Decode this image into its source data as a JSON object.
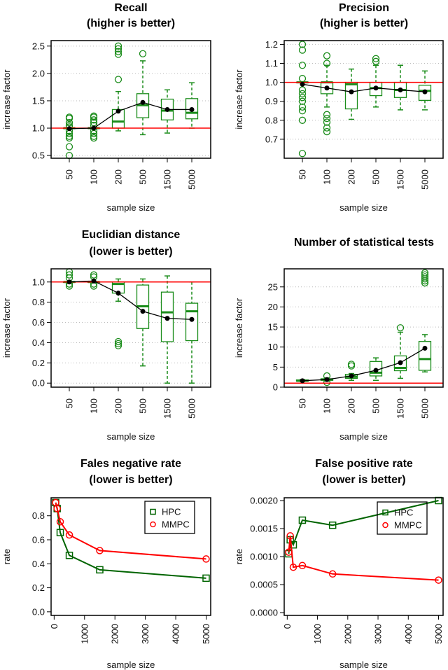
{
  "colors": {
    "box": "#1a8c1a",
    "hpc": "#006400",
    "mmpc": "#ff0000",
    "reference": "#ff0000",
    "mean": "#000000"
  },
  "chart_data": [
    {
      "type": "box",
      "title": [
        "Recall",
        "(higher is better)"
      ],
      "xlabel": "sample size",
      "ylabel": "increase factor",
      "categories": [
        "50",
        "100",
        "200",
        "500",
        "1500",
        "5000"
      ],
      "ylim": [
        0.45,
        2.6
      ],
      "yticks": [
        "0.5",
        "1.0",
        "1.5",
        "2.0",
        "2.5"
      ],
      "reference_line": 1.0,
      "boxes": [
        {
          "lo": 1.0,
          "q1": 1.0,
          "med": 1.0,
          "q3": 1.0,
          "hi": 1.0,
          "mean": 0.99,
          "outliers": [
            1.2,
            1.18,
            1.1,
            1.05,
            1.02,
            0.95,
            0.9,
            0.85,
            0.82,
            0.66,
            0.5
          ]
        },
        {
          "lo": 1.0,
          "q1": 1.0,
          "med": 1.0,
          "q3": 1.0,
          "hi": 1.0,
          "mean": 1.0,
          "outliers": [
            1.22,
            1.2,
            1.15,
            1.1,
            1.05,
            0.95,
            0.9,
            0.85,
            0.82
          ]
        },
        {
          "lo": 0.95,
          "q1": 1.0,
          "med": 1.12,
          "q3": 1.34,
          "hi": 1.67,
          "mean": 1.31,
          "outliers": [
            2.5,
            2.45,
            2.4,
            2.35,
            1.89
          ]
        },
        {
          "lo": 0.88,
          "q1": 1.19,
          "med": 1.42,
          "q3": 1.63,
          "hi": 2.23,
          "mean": 1.47,
          "outliers": [
            2.36
          ]
        },
        {
          "lo": 0.91,
          "q1": 1.15,
          "med": 1.32,
          "q3": 1.53,
          "hi": 1.7,
          "mean": 1.34,
          "outliers": []
        },
        {
          "lo": 1.0,
          "q1": 1.17,
          "med": 1.28,
          "q3": 1.54,
          "hi": 1.83,
          "mean": 1.34,
          "outliers": []
        }
      ]
    },
    {
      "type": "box",
      "title": [
        "Precision",
        "(higher is better)"
      ],
      "xlabel": "sample size",
      "ylabel": "increase factor",
      "categories": [
        "50",
        "100",
        "200",
        "500",
        "1500",
        "5000"
      ],
      "ylim": [
        0.6,
        1.22
      ],
      "yticks": [
        "0.7",
        "0.8",
        "0.9",
        "1.0",
        "1.1",
        "1.2"
      ],
      "reference_line": 1.0,
      "boxes": [
        {
          "lo": 1.0,
          "q1": 1.0,
          "med": 1.0,
          "q3": 1.0,
          "hi": 1.0,
          "mean": 0.99,
          "outliers": [
            1.2,
            1.17,
            1.09,
            1.02,
            0.96,
            0.94,
            0.92,
            0.9,
            0.87,
            0.85,
            0.8,
            0.625
          ]
        },
        {
          "lo": 0.87,
          "q1": 0.94,
          "med": 1.0,
          "q3": 1.0,
          "hi": 1.09,
          "mean": 0.97,
          "outliers": [
            1.14,
            1.1,
            0.83,
            0.81,
            0.79,
            0.76,
            0.74
          ]
        },
        {
          "lo": 0.805,
          "q1": 0.86,
          "med": 0.99,
          "q3": 1.0,
          "hi": 1.07,
          "mean": 0.95,
          "outliers": []
        },
        {
          "lo": 0.87,
          "q1": 0.93,
          "med": 0.97,
          "q3": 1.0,
          "hi": 1.09,
          "mean": 0.97,
          "outliers": [
            1.125,
            1.11
          ]
        },
        {
          "lo": 0.855,
          "q1": 0.92,
          "med": 0.96,
          "q3": 1.0,
          "hi": 1.09,
          "mean": 0.96,
          "outliers": []
        },
        {
          "lo": 0.855,
          "q1": 0.905,
          "med": 0.955,
          "q3": 0.985,
          "hi": 1.06,
          "mean": 0.95,
          "outliers": []
        }
      ]
    },
    {
      "type": "box",
      "title": [
        "Euclidian distance",
        "(lower is better)"
      ],
      "xlabel": "sample size",
      "ylabel": "increase factor",
      "categories": [
        "50",
        "100",
        "200",
        "500",
        "1500",
        "5000"
      ],
      "ylim": [
        -0.04,
        1.13
      ],
      "yticks": [
        "0.0",
        "0.2",
        "0.4",
        "0.6",
        "0.8",
        "1.0"
      ],
      "reference_line": 1.0,
      "boxes": [
        {
          "lo": 1.0,
          "q1": 1.0,
          "med": 1.0,
          "q3": 1.0,
          "hi": 1.0,
          "mean": 1.0,
          "outliers": [
            1.1,
            1.07,
            1.04,
            0.98,
            0.96
          ]
        },
        {
          "lo": 1.0,
          "q1": 1.0,
          "med": 1.0,
          "q3": 1.0,
          "hi": 1.0,
          "mean": 1.01,
          "outliers": [
            1.07,
            1.05,
            0.98,
            0.96
          ]
        },
        {
          "lo": 0.81,
          "q1": 0.89,
          "med": 0.98,
          "q3": 1.0,
          "hi": 1.03,
          "mean": 0.89,
          "outliers": [
            0.41,
            0.39,
            0.37
          ]
        },
        {
          "lo": 0.17,
          "q1": 0.54,
          "med": 0.76,
          "q3": 0.97,
          "hi": 1.03,
          "mean": 0.71,
          "outliers": []
        },
        {
          "lo": 0.0,
          "q1": 0.41,
          "med": 0.7,
          "q3": 0.9,
          "hi": 1.06,
          "mean": 0.64,
          "outliers": []
        },
        {
          "lo": 0.0,
          "q1": 0.42,
          "med": 0.71,
          "q3": 0.79,
          "hi": 1.0,
          "mean": 0.63,
          "outliers": []
        }
      ]
    },
    {
      "type": "box",
      "title": [
        "Number of statistical tests"
      ],
      "xlabel": "sample size",
      "ylabel": "increase factor",
      "categories": [
        "50",
        "100",
        "200",
        "500",
        "1500",
        "5000"
      ],
      "ylim": [
        0,
        29.5
      ],
      "yticks": [
        "0",
        "5",
        "10",
        "15",
        "20",
        "25"
      ],
      "reference_line": 1.0,
      "boxes": [
        {
          "lo": 1.4,
          "q1": 1.5,
          "med": 1.6,
          "q3": 1.8,
          "hi": 1.9,
          "mean": 1.6,
          "outliers": []
        },
        {
          "lo": 1.5,
          "q1": 1.7,
          "med": 1.9,
          "q3": 2.1,
          "hi": 2.3,
          "mean": 1.9,
          "outliers": [
            2.8,
            1.2
          ]
        },
        {
          "lo": 1.7,
          "q1": 2.2,
          "med": 2.6,
          "q3": 3.2,
          "hi": 3.4,
          "mean": 2.8,
          "outliers": [
            5.7,
            5.3
          ]
        },
        {
          "lo": 1.7,
          "q1": 2.8,
          "med": 3.6,
          "q3": 6.4,
          "hi": 7.3,
          "mean": 4.2,
          "outliers": []
        },
        {
          "lo": 2.2,
          "q1": 4.1,
          "med": 4.8,
          "q3": 7.8,
          "hi": 13.7,
          "mean": 6.1,
          "outliers": [
            14.8
          ]
        },
        {
          "lo": 3.8,
          "q1": 4.2,
          "med": 7.0,
          "q3": 11.4,
          "hi": 13.1,
          "mean": 9.7,
          "outliers": [
            28.5,
            28,
            27.5,
            27,
            26.5,
            26
          ]
        }
      ]
    },
    {
      "type": "line",
      "title": [
        "Fales negative rate",
        "(lower is better)"
      ],
      "xlabel": "sample size",
      "ylabel": "rate",
      "x": [
        50,
        100,
        200,
        500,
        1500,
        5000
      ],
      "xlim": [
        -100,
        5150
      ],
      "ylim": [
        -0.03,
        0.95
      ],
      "xticks": [
        "0",
        "1000",
        "2000",
        "3000",
        "4000",
        "5000"
      ],
      "yticks": [
        "0.0",
        "0.2",
        "0.4",
        "0.6",
        "0.8"
      ],
      "legend": "top-right",
      "series": [
        {
          "name": "HPC",
          "marker": "square",
          "values": [
            0.91,
            0.86,
            0.66,
            0.47,
            0.35,
            0.28
          ]
        },
        {
          "name": "MMPC",
          "marker": "circle",
          "values": [
            0.91,
            0.86,
            0.75,
            0.64,
            0.51,
            0.44
          ]
        }
      ]
    },
    {
      "type": "line",
      "title": [
        "False positive rate",
        "(lower is better)"
      ],
      "xlabel": "sample size",
      "ylabel": "rate",
      "x": [
        50,
        100,
        200,
        500,
        1500,
        5000
      ],
      "xlim": [
        -100,
        5150
      ],
      "ylim": [
        -5e-05,
        0.00205
      ],
      "xticks": [
        "0",
        "1000",
        "2000",
        "3000",
        "4000",
        "5000"
      ],
      "yticks": [
        "0.0000",
        "0.0005",
        "0.0010",
        "0.0015",
        "0.0020"
      ],
      "legend": "top-right",
      "series": [
        {
          "name": "HPC",
          "marker": "square",
          "values": [
            0.00105,
            0.0013,
            0.00121,
            0.00165,
            0.00156,
            0.002
          ]
        },
        {
          "name": "MMPC",
          "marker": "circle",
          "values": [
            0.00108,
            0.00137,
            0.00081,
            0.00084,
            0.00069,
            0.00058
          ]
        }
      ]
    }
  ]
}
